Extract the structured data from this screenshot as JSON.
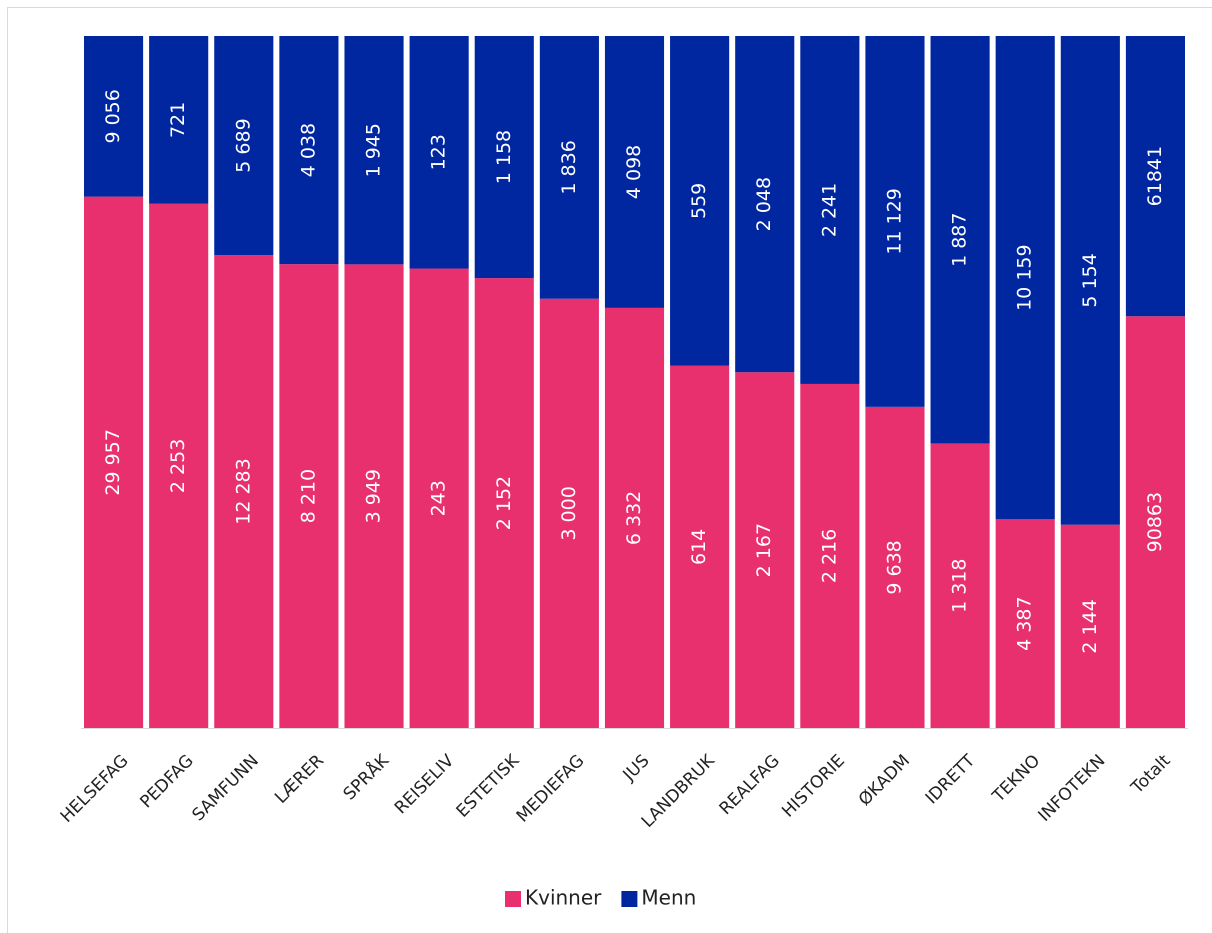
{
  "chart_data": {
    "type": "bar",
    "stack": "percent",
    "categories": [
      "HELSEFAG",
      "PEDFAG",
      "SAMFUNN",
      "LÆRER",
      "SPRÅK",
      "REISELIV",
      "ESTETISK",
      "MEDIEFAG",
      "JUS",
      "LANDBRUK",
      "REALFAG",
      "HISTORIE",
      "ØKADM",
      "IDRETT",
      "TEKNO",
      "INFOTEKN",
      "Totalt"
    ],
    "series": [
      {
        "name": "Kvinner",
        "color": "#e8306f",
        "values": [
          29957,
          2253,
          12283,
          8210,
          3949,
          243,
          2152,
          3000,
          6332,
          614,
          2167,
          2216,
          9638,
          1318,
          4387,
          2144,
          90863
        ],
        "value_labels": [
          "29 957",
          "2 253",
          "12 283",
          "8 210",
          "3 949",
          "243",
          "2 152",
          "3 000",
          "6 332",
          "614",
          "2 167",
          "2 216",
          "9 638",
          "1 318",
          "4 387",
          "2 144",
          "90863"
        ]
      },
      {
        "name": "Menn",
        "color": "#0026a0",
        "values": [
          9056,
          721,
          5689,
          4038,
          1945,
          123,
          1158,
          1836,
          4098,
          559,
          2048,
          2241,
          11129,
          1887,
          10159,
          5154,
          61841
        ],
        "value_labels": [
          "9 056",
          "721",
          "5 689",
          "4 038",
          "1 945",
          "123",
          "1 158",
          "1 836",
          "4 098",
          "559",
          "2 048",
          "2 241",
          "11 129",
          "1 887",
          "10 159",
          "5 154",
          "61841"
        ]
      }
    ],
    "legend": "bottom"
  }
}
